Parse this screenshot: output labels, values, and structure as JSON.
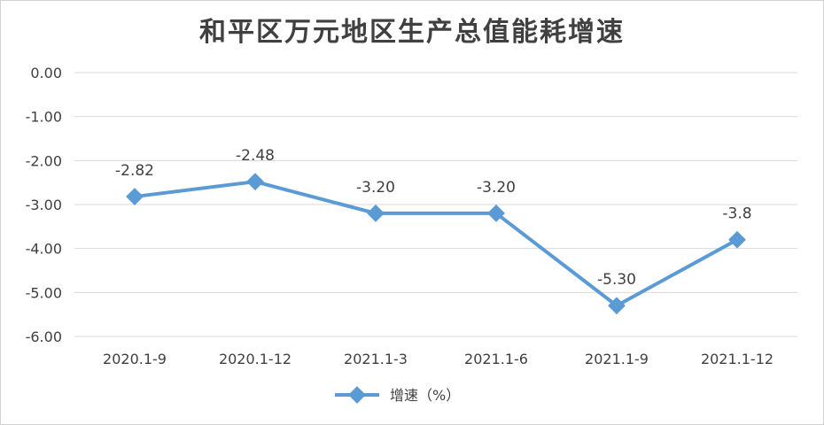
{
  "chart_data": {
    "type": "line",
    "title": "和平区万元地区生产总值能耗增速",
    "categories": [
      "2020.1-9",
      "2020.1-12",
      "2021.1-3",
      "2021.1-6",
      "2021.1-9",
      "2021.1-12"
    ],
    "series": [
      {
        "name": "增速（%）",
        "values": [
          -2.82,
          -2.48,
          -3.2,
          -3.2,
          -5.3,
          -3.8
        ],
        "labels": [
          "-2.82",
          "-2.48",
          "-3.20",
          "-3.20",
          "-5.30",
          "-3.8"
        ]
      }
    ],
    "y_ticks": [
      "0.00",
      "-1.00",
      "-2.00",
      "-3.00",
      "-4.00",
      "-5.00",
      "-6.00"
    ],
    "ylim": [
      -6,
      0
    ],
    "grid": true,
    "legend_position": "bottom",
    "colors": {
      "line": "#5B9BD5",
      "grid": "#d9d9d9",
      "text": "#404040"
    }
  }
}
